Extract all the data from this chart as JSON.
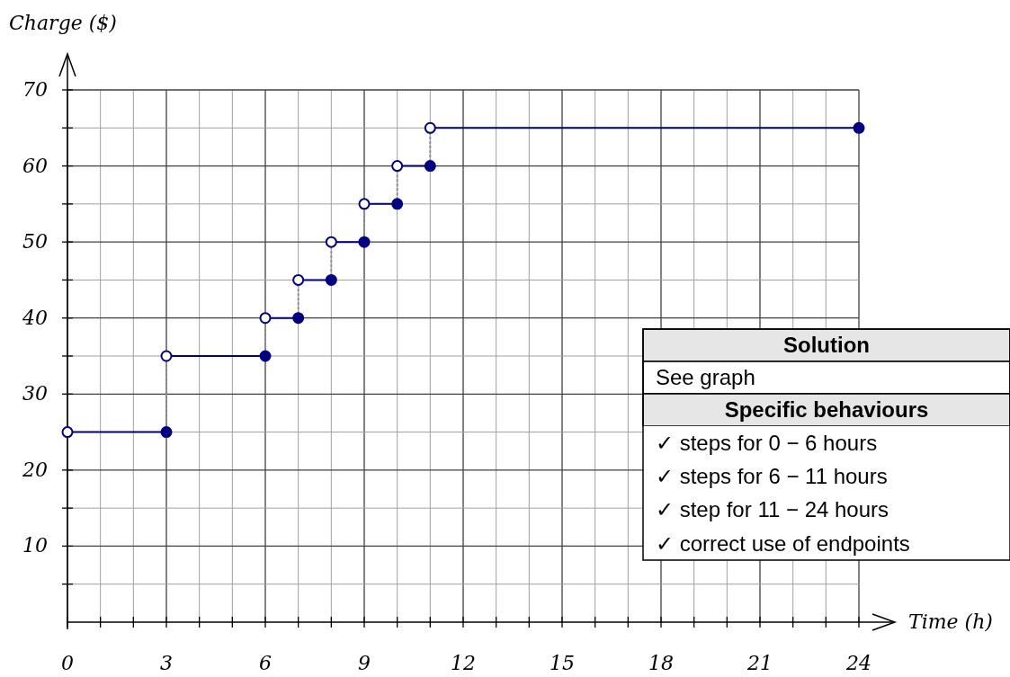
{
  "chart_data": {
    "type": "line",
    "xlabel": "Time (h)",
    "ylabel": "Charge ($)",
    "xlim": [
      0,
      24
    ],
    "ylim": [
      0,
      70
    ],
    "xticks": [
      0,
      {
        "value": 1,
        "label": null
      },
      {
        "value": 2,
        "label": null
      },
      3,
      {
        "value": 4,
        "label": null
      },
      {
        "value": 5,
        "label": null
      },
      6,
      {
        "value": 7,
        "label": null
      },
      {
        "value": 8,
        "label": null
      },
      9,
      {
        "value": 10,
        "label": null
      },
      {
        "value": 11,
        "label": null
      },
      12,
      {
        "value": 13,
        "label": null
      },
      {
        "value": 14,
        "label": null
      },
      15,
      {
        "value": 16,
        "label": null
      },
      {
        "value": 17,
        "label": null
      },
      18,
      {
        "value": 19,
        "label": null
      },
      {
        "value": 20,
        "label": null
      },
      21,
      {
        "value": 22,
        "label": null
      },
      {
        "value": 23,
        "label": null
      },
      24
    ],
    "yticks": [
      {
        "value": 5,
        "label": null
      },
      10,
      {
        "value": 15,
        "label": null
      },
      20,
      {
        "value": 25,
        "label": null
      },
      30,
      {
        "value": 35,
        "label": null
      },
      40,
      {
        "value": 45,
        "label": null
      },
      50,
      {
        "value": 55,
        "label": null
      },
      60,
      {
        "value": 65,
        "label": null
      },
      70
    ],
    "grid": true,
    "series": [
      {
        "color": "#000080",
        "line_style": "solid",
        "x": [
          0,
          3,
          null,
          3,
          6,
          null,
          6,
          7,
          null,
          7,
          8,
          null,
          8,
          9,
          null,
          9,
          10,
          null,
          10,
          11,
          null,
          11,
          24
        ],
        "values": [
          25,
          25,
          null,
          35,
          35,
          null,
          40,
          40,
          null,
          45,
          45,
          null,
          50,
          50,
          null,
          55,
          55,
          null,
          60,
          60,
          null,
          65,
          65
        ]
      },
      {
        "color": "#909090",
        "line_style": "dotted",
        "x": [
          3,
          3,
          null,
          6,
          6,
          null,
          7,
          7,
          null,
          8,
          8,
          null,
          9,
          9,
          null,
          10,
          10,
          null,
          11,
          11
        ],
        "values": [
          25,
          35,
          null,
          35,
          40,
          null,
          40,
          45,
          null,
          45,
          50,
          null,
          50,
          55,
          null,
          55,
          60,
          null,
          60,
          65
        ]
      },
      {
        "type": "scatter",
        "color": "#000080",
        "marker": "circle",
        "x": [
          3,
          6,
          7,
          8,
          9,
          10,
          11,
          24
        ],
        "values": [
          25,
          35,
          40,
          45,
          50,
          55,
          60,
          65
        ]
      },
      {
        "type": "scatter",
        "color": "#ffffff",
        "marker": "circle",
        "x": [
          0,
          3,
          6,
          7,
          8,
          9,
          10,
          11
        ],
        "values": [
          25,
          35,
          40,
          45,
          50,
          55,
          60,
          65
        ]
      }
    ],
    "annotations": [
      "Solution",
      "See graph",
      "Specific behaviours",
      "✓ steps for 0 − 6 hours",
      "✓ steps for 6 − 11 hours",
      "✓ step for 11 − 24 hours",
      "✓ correct use of endpoints"
    ]
  }
}
